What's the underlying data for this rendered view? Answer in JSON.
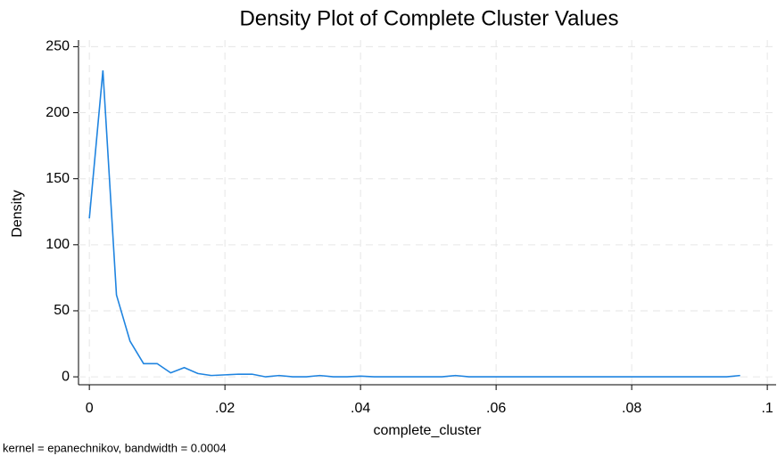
{
  "chart_data": {
    "type": "line",
    "title": "Density Plot of Complete Cluster Values",
    "x_label": "complete_cluster",
    "y_label": "Density",
    "note": "kernel = epanechnikov, bandwidth = 0.0004",
    "x": [
      0,
      0.002,
      0.004,
      0.006,
      0.008,
      0.01,
      0.012,
      0.014,
      0.016,
      0.018,
      0.02,
      0.022,
      0.024,
      0.026,
      0.028,
      0.03,
      0.032,
      0.034,
      0.036,
      0.038,
      0.04,
      0.042,
      0.044,
      0.046,
      0.048,
      0.05,
      0.052,
      0.054,
      0.056,
      0.058,
      0.06,
      0.062,
      0.064,
      0.066,
      0.068,
      0.07,
      0.072,
      0.074,
      0.076,
      0.078,
      0.08,
      0.082,
      0.084,
      0.086,
      0.088,
      0.09,
      0.092,
      0.094,
      0.096
    ],
    "values": [
      120,
      232,
      62,
      27,
      10,
      10,
      3,
      7,
      2.5,
      1,
      1.5,
      2,
      2,
      0,
      1,
      0,
      0,
      1,
      0,
      0,
      0.5,
      0,
      0,
      0,
      0,
      0,
      0,
      1,
      0,
      0,
      0,
      0,
      0,
      0,
      0,
      0,
      0,
      0,
      0,
      0,
      0,
      0,
      0,
      0,
      0,
      0,
      0,
      0,
      1
    ],
    "color": "#1f84e0",
    "xlim": [
      -0.0016,
      0.1013
    ],
    "ylim": [
      -6,
      255
    ],
    "xticks": [
      0,
      {
        "value": 0.02,
        "label": ".02"
      },
      {
        "value": 0.04,
        "label": ".04"
      },
      {
        "value": 0.06,
        "label": ".06"
      },
      {
        "value": 0.08,
        "label": ".08"
      },
      {
        "value": 0.1,
        "label": ".1"
      }
    ],
    "yticks": [
      0,
      50,
      100,
      150,
      200,
      250
    ],
    "grid": true
  }
}
